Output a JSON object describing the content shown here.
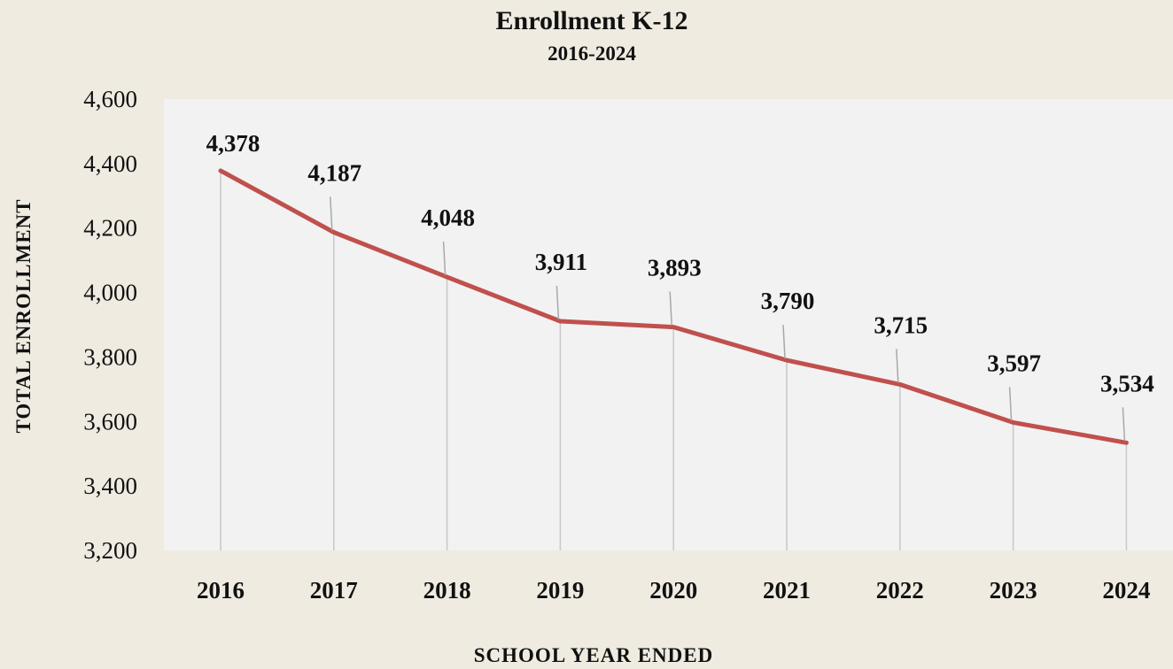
{
  "chart_data": {
    "type": "line",
    "title": "Enrollment K-12",
    "subtitle": "2016-2024",
    "xlabel": "SCHOOL YEAR ENDED",
    "ylabel": "TOTAL ENROLLMENT",
    "categories": [
      "2016",
      "2017",
      "2018",
      "2019",
      "2020",
      "2021",
      "2022",
      "2023",
      "2024"
    ],
    "series": [
      {
        "values": [
          4378,
          4187,
          4048,
          3911,
          3893,
          3790,
          3715,
          3597,
          3534
        ],
        "labels": [
          "4,378",
          "4,187",
          "4,048",
          "3,911",
          "3,893",
          "3,790",
          "3,715",
          "3,597",
          "3,534"
        ],
        "color": "#c0504d"
      }
    ],
    "ylim": [
      3200,
      4600
    ],
    "yticks": [
      "3,200",
      "3,400",
      "3,600",
      "3,800",
      "4,000",
      "4,200",
      "4,400",
      "4,600"
    ],
    "ytick_values": [
      3200,
      3400,
      3600,
      3800,
      4000,
      4200,
      4400,
      4600
    ],
    "grid": false,
    "drop_lines": true,
    "plot_background": "#f2f2f2",
    "page_background": "#efebe1",
    "drop_line_color": "#c8c8c8"
  }
}
